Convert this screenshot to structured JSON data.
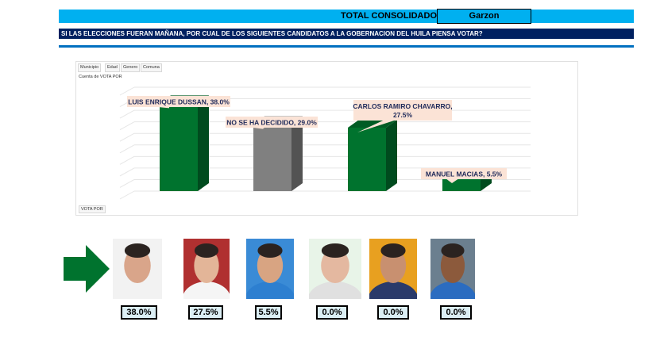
{
  "header": {
    "title": "TOTAL CONSOLIDADO",
    "municipality": "Garzon",
    "question": "SI LAS ELECCIONES FUERAN MAÑANA, POR CUAL DE LOS SIGUIENTES CANDIDATOS A LA GOBERNACION DEL HUILA PIENSA VOTAR?"
  },
  "filters": [
    "Municipio",
    "Edad",
    "Genero",
    "Comuna"
  ],
  "measure_label": "Cuenta de VOTA POR",
  "axis_field_label": "VOTA POR",
  "colors": {
    "green": "#00732e",
    "gray": "#808080",
    "callout": "#fbe3d6",
    "header_bg": "#00b0f0",
    "question_bg": "#002060"
  },
  "chart_data": {
    "type": "bar",
    "categories": [
      "LUIS ENRIQUE DUSSAN",
      "NO SE HA DECIDIDO",
      "CARLOS RAMIRO CHAVARRO",
      "MANUEL MACIAS"
    ],
    "values": [
      38.0,
      29.0,
      27.5,
      5.5
    ],
    "data_labels": [
      "LUIS ENRIQUE DUSSAN, 38.0%",
      "NO SE HA DECIDIDO, 29.0%",
      "CARLOS RAMIRO CHAVARRO, 27.5%",
      "MANUEL MACIAS, 5.5%"
    ],
    "series_colors": [
      "#00732e",
      "#808080",
      "#00732e",
      "#00732e"
    ],
    "ylim": [
      0,
      45
    ],
    "grid": true
  },
  "candidates": [
    {
      "photo": "candidate-photo-1",
      "pct": "38.0%"
    },
    {
      "photo": "candidate-photo-2",
      "pct": "27.5%"
    },
    {
      "photo": "candidate-photo-3",
      "pct": "5.5%"
    },
    {
      "photo": "candidate-photo-4",
      "pct": "0.0%"
    },
    {
      "photo": "candidate-photo-5",
      "pct": "0.0%"
    },
    {
      "photo": "candidate-photo-6",
      "pct": "0.0%"
    }
  ]
}
